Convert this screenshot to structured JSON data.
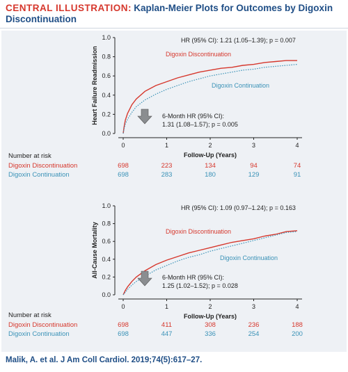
{
  "header": {
    "label": "CENTRAL ILLUSTRATION",
    "separator": ":",
    "title": "Kaplan-Meier Plots for Outcomes by Digoxin Discontinuation"
  },
  "footer": {
    "citation": "Malik, A. et al. J Am Coll Cardiol. 2019;74(5):617–27."
  },
  "colors": {
    "discontinuation": "#d6372c",
    "continuation": "#3a92b7",
    "header_blue": "#1f4e86",
    "arrow": "#8a8d90",
    "panel_bg": "#eef1f5"
  },
  "chart_data": [
    {
      "type": "line",
      "ylabel": "Heart Failure Readmission",
      "xlabel": "Follow-Up (Years)",
      "xlim": [
        0,
        4
      ],
      "ylim": [
        0,
        1
      ],
      "x_ticks": [
        "0",
        "1",
        "2",
        "3",
        "4"
      ],
      "y_ticks": [
        "0.0",
        "0.2",
        "0.4",
        "0.6",
        "0.8",
        "1.0"
      ],
      "hr_text": "HR (95% CI): 1.21 (1.05–1.39); p = 0.007",
      "six_month": {
        "line1": "6-Month HR (95% CI):",
        "line2": "1.31 (1.08–1.57); p = 0.005",
        "arrow_icon": "down-arrow-icon"
      },
      "series": [
        {
          "name": "Digoxin Discontinuation",
          "style": "solid",
          "x": [
            0,
            0.02,
            0.05,
            0.1,
            0.2,
            0.3,
            0.5,
            0.75,
            1.0,
            1.25,
            1.5,
            1.75,
            2.0,
            2.25,
            2.5,
            2.75,
            3.0,
            3.25,
            3.5,
            3.75,
            4.0
          ],
          "y": [
            0,
            0.07,
            0.14,
            0.21,
            0.3,
            0.36,
            0.44,
            0.5,
            0.54,
            0.58,
            0.61,
            0.64,
            0.66,
            0.68,
            0.69,
            0.71,
            0.72,
            0.74,
            0.75,
            0.76,
            0.76
          ]
        },
        {
          "name": "Digoxin Continuation",
          "style": "dotted",
          "x": [
            0,
            0.02,
            0.05,
            0.1,
            0.2,
            0.3,
            0.5,
            0.75,
            1.0,
            1.25,
            1.5,
            1.75,
            2.0,
            2.25,
            2.5,
            2.75,
            3.0,
            3.25,
            3.5,
            3.75,
            4.0
          ],
          "y": [
            0,
            0.05,
            0.1,
            0.15,
            0.22,
            0.28,
            0.35,
            0.41,
            0.46,
            0.5,
            0.54,
            0.57,
            0.6,
            0.62,
            0.64,
            0.66,
            0.67,
            0.69,
            0.7,
            0.71,
            0.72
          ]
        }
      ],
      "at_risk": {
        "title": "Number at risk",
        "rows": [
          {
            "name": "Digoxin Discontinuation",
            "values": [
              "698",
              "223",
              "134",
              "94",
              "74"
            ]
          },
          {
            "name": "Digoxin Continuation",
            "values": [
              "698",
              "283",
              "180",
              "129",
              "91"
            ]
          }
        ]
      }
    },
    {
      "type": "line",
      "ylabel": "All-Cause Mortality",
      "xlabel": "Follow-Up (Years)",
      "xlim": [
        0,
        4
      ],
      "ylim": [
        0,
        1
      ],
      "x_ticks": [
        "0",
        "1",
        "2",
        "3",
        "4"
      ],
      "y_ticks": [
        "0.0",
        "0.2",
        "0.4",
        "0.6",
        "0.8",
        "1.0"
      ],
      "hr_text": "HR (95% CI): 1.09 (0.97–1.24); p = 0.163",
      "six_month": {
        "line1": "6-Month HR (95% CI):",
        "line2": "1.25 (1.02–1.52); p = 0.028",
        "arrow_icon": "down-arrow-icon"
      },
      "series": [
        {
          "name": "Digoxin Discontinuation",
          "style": "solid",
          "x": [
            0,
            0.05,
            0.1,
            0.2,
            0.3,
            0.5,
            0.75,
            1.0,
            1.25,
            1.5,
            1.75,
            2.0,
            2.25,
            2.5,
            2.75,
            3.0,
            3.25,
            3.5,
            3.75,
            4.0
          ],
          "y": [
            0,
            0.05,
            0.09,
            0.15,
            0.2,
            0.27,
            0.34,
            0.39,
            0.43,
            0.47,
            0.5,
            0.53,
            0.56,
            0.59,
            0.61,
            0.63,
            0.66,
            0.68,
            0.71,
            0.72
          ]
        },
        {
          "name": "Digoxin Continuation",
          "style": "dotted",
          "x": [
            0,
            0.05,
            0.1,
            0.2,
            0.3,
            0.5,
            0.75,
            1.0,
            1.25,
            1.5,
            1.75,
            2.0,
            2.25,
            2.5,
            2.75,
            3.0,
            3.25,
            3.5,
            3.75,
            4.0
          ],
          "y": [
            0,
            0.03,
            0.06,
            0.11,
            0.15,
            0.21,
            0.28,
            0.33,
            0.38,
            0.42,
            0.45,
            0.49,
            0.52,
            0.55,
            0.58,
            0.61,
            0.64,
            0.67,
            0.7,
            0.71
          ]
        }
      ],
      "at_risk": {
        "title": "Number at risk",
        "rows": [
          {
            "name": "Digoxin Discontinuation",
            "values": [
              "698",
              "411",
              "308",
              "236",
              "188"
            ]
          },
          {
            "name": "Digoxin Continuation",
            "values": [
              "698",
              "447",
              "336",
              "254",
              "200"
            ]
          }
        ]
      }
    }
  ]
}
